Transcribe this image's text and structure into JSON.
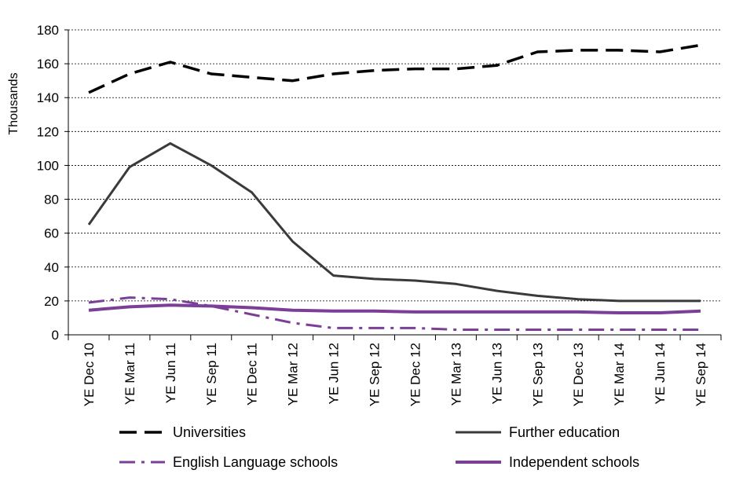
{
  "chart_data": {
    "type": "line",
    "title": "",
    "xlabel": "",
    "ylabel": "Thousands",
    "ylim": [
      0,
      180
    ],
    "yticks": [
      0,
      20,
      40,
      60,
      80,
      100,
      120,
      140,
      160,
      180
    ],
    "grid": "horizontal-dotted",
    "legend_position": "bottom",
    "categories": [
      "YE Dec 10",
      "YE Mar 11",
      "YE Jun 11",
      "YE Sep 11",
      "YE Dec 11",
      "YE Mar 12",
      "YE Jun 12",
      "YE Sep 12",
      "YE Dec 12",
      "YE Mar 13",
      "YE Jun 13",
      "YE Sep 13",
      "YE Dec 13",
      "YE Mar 14",
      "YE Jun 14",
      "YE Sep 14"
    ],
    "series": [
      {
        "name": "Universities",
        "color": "#000000",
        "dash": "long-dash",
        "values": [
          143,
          154,
          161,
          154,
          152,
          150,
          154,
          156,
          157,
          157,
          159,
          167,
          168,
          168,
          167,
          171
        ]
      },
      {
        "name": "Further education",
        "color": "#3a3a3a",
        "dash": "solid",
        "values": [
          65,
          99,
          113,
          100,
          84,
          55,
          35,
          33,
          32,
          30,
          26,
          23,
          21,
          20,
          20,
          20
        ]
      },
      {
        "name": "English Language schools",
        "color": "#7b3f98",
        "dash": "dash-dot",
        "values": [
          19,
          22,
          21,
          17,
          12,
          7,
          4,
          4,
          4,
          3,
          3,
          3,
          3,
          3,
          3,
          3
        ]
      },
      {
        "name": "Independent schools",
        "color": "#7b3f98",
        "dash": "solid",
        "values": [
          14.5,
          16.5,
          17.5,
          17,
          16,
          14.5,
          14,
          14,
          13.5,
          13.5,
          13.5,
          13.5,
          13.5,
          13,
          13,
          14
        ]
      }
    ]
  }
}
